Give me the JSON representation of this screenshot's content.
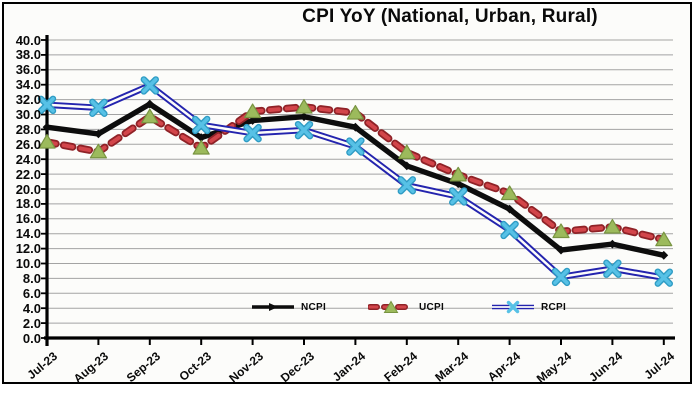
{
  "chart_data": {
    "type": "line",
    "title": "CPI YoY (National, Urban, Rural)",
    "categories": [
      "Jul-23",
      "Aug-23",
      "Sep-23",
      "Oct-23",
      "Nov-23",
      "Dec-23",
      "Jan-24",
      "Feb-24",
      "Mar-24",
      "Apr-24",
      "May-24",
      "Jun-24",
      "Jul-24"
    ],
    "series": [
      {
        "name": "NCPI",
        "values": [
          28.3,
          27.4,
          31.4,
          26.9,
          29.2,
          29.7,
          28.3,
          23.1,
          20.7,
          17.3,
          11.8,
          12.6,
          11.1
        ],
        "line_style": "solid",
        "marker": "diamond",
        "color": "#0D0D0D",
        "marker_color": "#0D0D0D"
      },
      {
        "name": "UCPI",
        "values": [
          26.3,
          25.0,
          29.7,
          25.5,
          30.4,
          31.0,
          30.2,
          24.9,
          21.9,
          19.4,
          14.3,
          14.9,
          13.2
        ],
        "line_style": "dashed",
        "marker": "triangle",
        "color": "#D2454A",
        "edge_color": "#8F2227",
        "marker_color": "#9CBA5C",
        "marker_edge_color": "#789441"
      },
      {
        "name": "RCPI",
        "values": [
          31.3,
          30.9,
          33.9,
          28.6,
          27.5,
          27.9,
          25.7,
          20.5,
          19.0,
          14.5,
          8.2,
          9.3,
          8.1
        ],
        "line_style": "double",
        "marker": "x",
        "color": "#2424AE",
        "inner_color": "#FCFCFA",
        "marker_color": "#57C1E6",
        "marker_edge_color": "#2F9CC4"
      }
    ],
    "ylim": [
      0,
      40
    ],
    "ytick_step": 2,
    "xlabel": "",
    "ylabel": "",
    "grid": true,
    "gridline_color": "#A3A3A3",
    "axis_color": "#000000",
    "legend": [
      "NCPI",
      "UCPI",
      "RCPI"
    ],
    "legend_position": "bottom-inside"
  }
}
